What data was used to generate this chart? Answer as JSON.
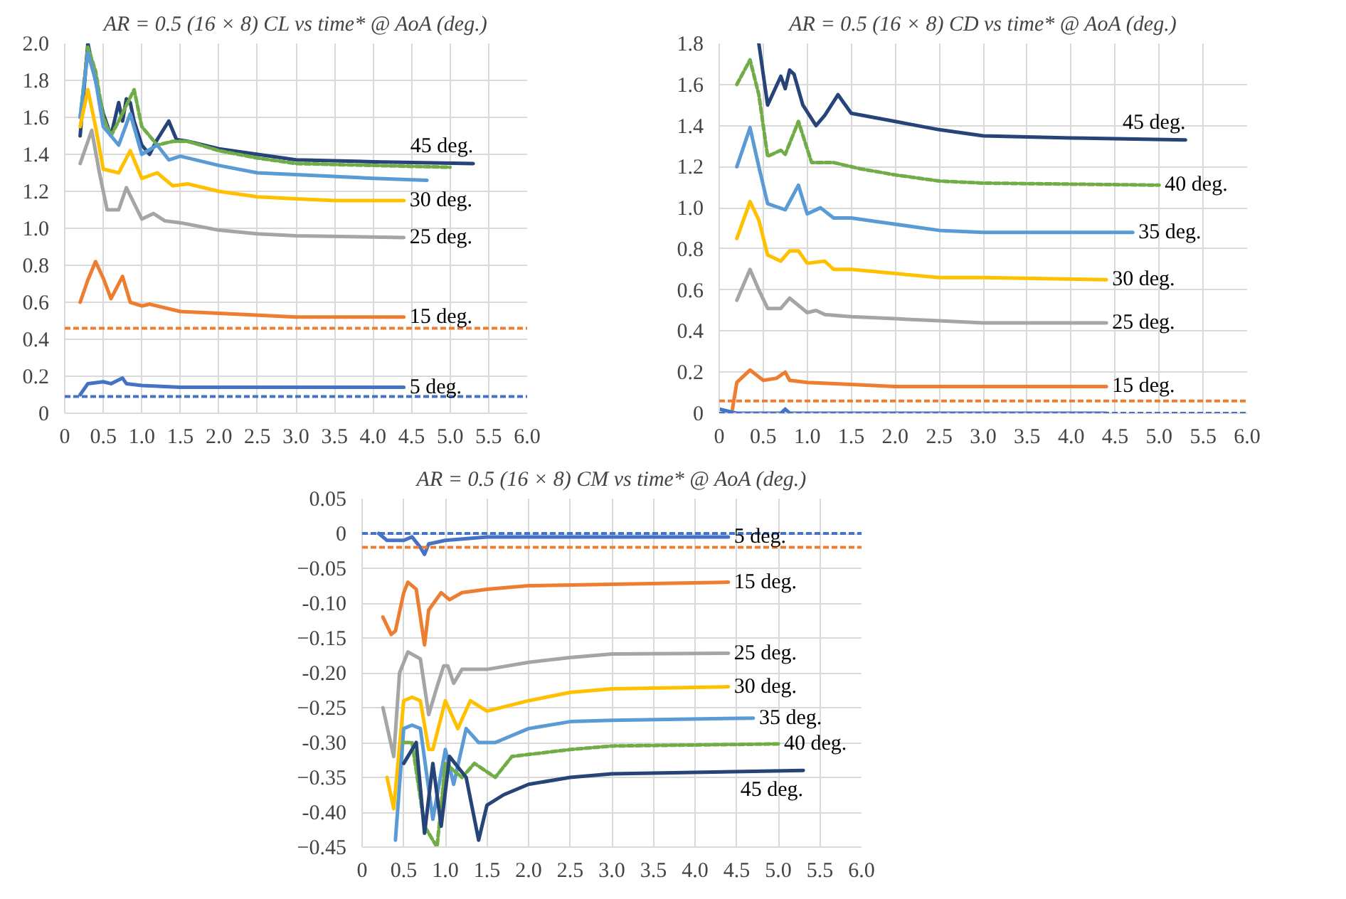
{
  "chart_data": [
    {
      "type": "line",
      "title": "AR = 0.5 (16 × 8) CL vs time* @ AoA (deg.)",
      "xlim": [
        0,
        6
      ],
      "ylim": [
        0,
        2
      ],
      "xticks": [
        0,
        0.5,
        {
          "value": 1,
          "label": "1.0"
        },
        1.5,
        {
          "value": 2,
          "label": "2.0"
        },
        2.5,
        {
          "value": 3,
          "label": "3.0"
        },
        3.5,
        {
          "value": 4,
          "label": "4.0"
        },
        4.5,
        {
          "value": 5,
          "label": "5.0"
        },
        5.5,
        {
          "value": 6,
          "label": "6.0"
        }
      ],
      "yticks": [
        0,
        0.2,
        0.4,
        0.6,
        0.8,
        {
          "value": 1,
          "label": "1.0"
        },
        1.2,
        1.4,
        1.6,
        1.8,
        {
          "value": 2,
          "label": "2.0"
        }
      ],
      "grid": true,
      "ref_lines": [
        {
          "axis": "y",
          "value": 0.46,
          "color": "#ed7d31",
          "line_style": "dashed"
        },
        {
          "axis": "y",
          "value": 0.09,
          "color": "#4472c4",
          "line_style": "dashed"
        }
      ],
      "series": [
        {
          "name": "45 deg.",
          "color": "#264478",
          "x": [
            0.2,
            0.3,
            0.4,
            0.5,
            0.6,
            0.7,
            0.75,
            0.8,
            0.85,
            0.9,
            1.0,
            1.1,
            1.2,
            1.35,
            1.45,
            1.6,
            2.0,
            2.5,
            3.0,
            4.0,
            5.3
          ],
          "values": [
            1.5,
            2.0,
            1.8,
            1.62,
            1.5,
            1.68,
            1.58,
            1.7,
            1.68,
            1.58,
            1.45,
            1.4,
            1.48,
            1.58,
            1.48,
            1.47,
            1.43,
            1.4,
            1.37,
            1.36,
            1.35
          ]
        },
        {
          "color": "#70ad47",
          "line_style": "dashed",
          "x": [
            0.2,
            0.3,
            0.4,
            0.5,
            0.6,
            0.7,
            0.9,
            1.0,
            1.2,
            1.4,
            1.6,
            2.0,
            2.5,
            3.0,
            4.0,
            5.0
          ],
          "values": [
            1.6,
            1.98,
            1.85,
            1.6,
            1.5,
            1.58,
            1.75,
            1.55,
            1.45,
            1.47,
            1.47,
            1.42,
            1.38,
            1.35,
            1.34,
            1.33
          ]
        },
        {
          "color": "#5b9bd5",
          "x": [
            0.2,
            0.3,
            0.4,
            0.5,
            0.7,
            0.85,
            1.0,
            1.2,
            1.35,
            1.5,
            2.0,
            2.5,
            3.0,
            4.0,
            4.7
          ],
          "values": [
            1.6,
            1.95,
            1.8,
            1.55,
            1.45,
            1.62,
            1.4,
            1.45,
            1.37,
            1.39,
            1.34,
            1.3,
            1.29,
            1.27,
            1.26
          ]
        },
        {
          "name": "30 deg.",
          "color": "#ffc000",
          "x": [
            0.2,
            0.3,
            0.4,
            0.5,
            0.7,
            0.85,
            1.0,
            1.2,
            1.4,
            1.6,
            2.0,
            2.5,
            3.0,
            3.5,
            4.4
          ],
          "values": [
            1.55,
            1.75,
            1.55,
            1.32,
            1.3,
            1.42,
            1.27,
            1.3,
            1.23,
            1.24,
            1.2,
            1.17,
            1.16,
            1.15,
            1.15
          ]
        },
        {
          "name": "25 deg.",
          "color": "#a5a5a5",
          "x": [
            0.2,
            0.35,
            0.45,
            0.55,
            0.7,
            0.8,
            1.0,
            1.15,
            1.3,
            1.5,
            2.0,
            2.5,
            3.0,
            4.4
          ],
          "values": [
            1.35,
            1.53,
            1.3,
            1.1,
            1.1,
            1.22,
            1.05,
            1.08,
            1.04,
            1.03,
            0.99,
            0.97,
            0.96,
            0.95
          ]
        },
        {
          "name": "15 deg.",
          "color": "#ed7d31",
          "x": [
            0.2,
            0.3,
            0.4,
            0.5,
            0.6,
            0.75,
            0.85,
            1.0,
            1.1,
            1.5,
            2.0,
            3.0,
            4.4
          ],
          "values": [
            0.6,
            0.72,
            0.82,
            0.73,
            0.62,
            0.74,
            0.6,
            0.58,
            0.59,
            0.55,
            0.54,
            0.52,
            0.52
          ]
        },
        {
          "name": "5 deg.",
          "color": "#4472c4",
          "x": [
            0.2,
            0.3,
            0.5,
            0.6,
            0.75,
            0.8,
            1.0,
            1.5,
            2.0,
            4.4
          ],
          "values": [
            0.1,
            0.16,
            0.17,
            0.16,
            0.19,
            0.16,
            0.15,
            0.14,
            0.14,
            0.14
          ]
        }
      ]
    },
    {
      "type": "line",
      "title": "AR = 0.5 (16 × 8) CD vs time* @ AoA (deg.)",
      "xlim": [
        0,
        6
      ],
      "ylim": [
        0,
        1.8
      ],
      "xticks": [
        0,
        0.5,
        {
          "value": 1,
          "label": "1.0"
        },
        1.5,
        {
          "value": 2,
          "label": "2.0"
        },
        2.5,
        {
          "value": 3,
          "label": "3.0"
        },
        3.5,
        {
          "value": 4,
          "label": "4.0"
        },
        4.5,
        {
          "value": 5,
          "label": "5.0"
        },
        5.5,
        {
          "value": 6,
          "label": "6.0"
        }
      ],
      "yticks": [
        0,
        0.2,
        0.4,
        0.6,
        0.8,
        {
          "value": 1,
          "label": "1.0"
        },
        1.2,
        1.4,
        1.6,
        1.8
      ],
      "grid": true,
      "ref_lines": [
        {
          "axis": "y",
          "value": 0.06,
          "color": "#ed7d31",
          "line_style": "dashed"
        },
        {
          "axis": "y",
          "value": 0,
          "color": "#4472c4",
          "line_style": "dashed"
        }
      ],
      "series": [
        {
          "name": "45 deg.",
          "color": "#264478",
          "x": [
            0.45,
            0.55,
            0.7,
            0.75,
            0.8,
            0.85,
            0.95,
            1.1,
            1.2,
            1.35,
            1.5,
            2.0,
            2.5,
            3.0,
            4.0,
            5.3
          ],
          "values": [
            1.8,
            1.5,
            1.64,
            1.58,
            1.67,
            1.65,
            1.5,
            1.4,
            1.45,
            1.55,
            1.46,
            1.42,
            1.38,
            1.35,
            1.34,
            1.33
          ]
        },
        {
          "name": "40 deg.",
          "color": "#70ad47",
          "line_style": "dashed",
          "x": [
            0.2,
            0.35,
            0.45,
            0.55,
            0.7,
            0.75,
            0.9,
            1.05,
            1.3,
            1.6,
            2.0,
            2.5,
            3.0,
            5.0
          ],
          "values": [
            1.6,
            1.72,
            1.55,
            1.25,
            1.28,
            1.26,
            1.42,
            1.22,
            1.22,
            1.19,
            1.16,
            1.13,
            1.12,
            1.11
          ]
        },
        {
          "name": "35 deg.",
          "color": "#5b9bd5",
          "x": [
            0.2,
            0.35,
            0.45,
            0.55,
            0.75,
            0.9,
            1.0,
            1.15,
            1.3,
            1.5,
            2.0,
            2.5,
            3.0,
            4.7
          ],
          "values": [
            1.2,
            1.39,
            1.2,
            1.02,
            0.99,
            1.11,
            0.97,
            1.0,
            0.95,
            0.95,
            0.92,
            0.89,
            0.88,
            0.88
          ]
        },
        {
          "name": "30 deg.",
          "color": "#ffc000",
          "x": [
            0.2,
            0.35,
            0.45,
            0.55,
            0.7,
            0.8,
            0.9,
            1.0,
            1.2,
            1.3,
            1.5,
            2.0,
            2.5,
            3.0,
            4.4
          ],
          "values": [
            0.85,
            1.03,
            0.94,
            0.77,
            0.74,
            0.79,
            0.79,
            0.73,
            0.74,
            0.7,
            0.7,
            0.68,
            0.66,
            0.66,
            0.65
          ]
        },
        {
          "name": "25 deg.",
          "color": "#a5a5a5",
          "x": [
            0.2,
            0.35,
            0.45,
            0.55,
            0.7,
            0.8,
            1.0,
            1.1,
            1.2,
            1.5,
            2.0,
            2.5,
            3.0,
            4.4
          ],
          "values": [
            0.55,
            0.7,
            0.6,
            0.51,
            0.51,
            0.56,
            0.49,
            0.5,
            0.48,
            0.47,
            0.46,
            0.45,
            0.44,
            0.44
          ]
        },
        {
          "name": "15 deg.",
          "color": "#ed7d31",
          "x": [
            0.15,
            0.2,
            0.35,
            0.5,
            0.65,
            0.75,
            0.8,
            1.0,
            1.5,
            2.0,
            4.4
          ],
          "values": [
            0.02,
            0.15,
            0.21,
            0.16,
            0.17,
            0.2,
            0.16,
            0.15,
            0.14,
            0.13,
            0.13
          ]
        },
        {
          "color": "#4472c4",
          "x": [
            0.0,
            0.1,
            0.2,
            0.7,
            0.75,
            0.8,
            4.4
          ],
          "values": [
            0.02,
            0.01,
            0.0,
            0.0,
            0.02,
            0.0,
            0.0
          ]
        }
      ]
    },
    {
      "type": "line",
      "title": "AR = 0.5 (16 × 8) CM vs time* @ AoA (deg.)",
      "xlim": [
        0,
        6
      ],
      "ylim": [
        -0.45,
        0.05
      ],
      "xticks": [
        0,
        0.5,
        {
          "value": 1,
          "label": "1.0"
        },
        1.5,
        {
          "value": 2,
          "label": "2.0"
        },
        2.5,
        {
          "value": 3,
          "label": "3.0"
        },
        3.5,
        {
          "value": 4,
          "label": "4.0"
        },
        4.5,
        {
          "value": 5,
          "label": "5.0"
        },
        5.5,
        {
          "value": 6,
          "label": "6.0"
        }
      ],
      "yticks": [
        0.05,
        0,
        -0.05,
        {
          "value": -0.1,
          "label": "-0.10"
        },
        -0.15,
        {
          "value": -0.2,
          "label": "-0.20"
        },
        -0.25,
        {
          "value": -0.3,
          "label": "-0.30"
        },
        -0.35,
        {
          "value": -0.4,
          "label": "-0.40"
        },
        -0.45
      ],
      "grid": true,
      "ref_lines": [
        {
          "axis": "y",
          "value": 0,
          "color": "#4472c4",
          "line_style": "dashed"
        },
        {
          "axis": "y",
          "value": -0.02,
          "color": "#ed7d31",
          "line_style": "dashed"
        }
      ],
      "series": [
        {
          "name": "5 deg.",
          "color": "#4472c4",
          "x": [
            0.2,
            0.3,
            0.5,
            0.6,
            0.7,
            0.75,
            0.8,
            1.0,
            1.5,
            2.5,
            4.4
          ],
          "values": [
            0.0,
            -0.01,
            -0.01,
            -0.005,
            -0.02,
            -0.03,
            -0.015,
            -0.01,
            -0.005,
            -0.005,
            -0.005
          ]
        },
        {
          "name": "15 deg.",
          "color": "#ed7d31",
          "x": [
            0.25,
            0.35,
            0.4,
            0.5,
            0.55,
            0.65,
            0.75,
            0.8,
            0.95,
            1.05,
            1.2,
            1.5,
            2.0,
            3.0,
            4.4
          ],
          "values": [
            -0.12,
            -0.145,
            -0.14,
            -0.085,
            -0.07,
            -0.08,
            -0.16,
            -0.11,
            -0.085,
            -0.095,
            -0.085,
            -0.08,
            -0.075,
            -0.073,
            -0.07
          ]
        },
        {
          "name": "25 deg.",
          "color": "#a5a5a5",
          "x": [
            0.25,
            0.38,
            0.45,
            0.55,
            0.7,
            0.8,
            0.9,
            0.98,
            1.03,
            1.1,
            1.2,
            1.5,
            2.0,
            2.5,
            3.0,
            4.4
          ],
          "values": [
            -0.25,
            -0.32,
            -0.2,
            -0.17,
            -0.18,
            -0.26,
            -0.22,
            -0.19,
            -0.19,
            -0.215,
            -0.195,
            -0.195,
            -0.185,
            -0.178,
            -0.173,
            -0.172
          ]
        },
        {
          "name": "30 deg.",
          "color": "#ffc000",
          "x": [
            0.3,
            0.38,
            0.5,
            0.6,
            0.7,
            0.8,
            0.85,
            1.0,
            1.15,
            1.3,
            1.5,
            2.0,
            2.5,
            3.0,
            4.4
          ],
          "values": [
            -0.35,
            -0.395,
            -0.24,
            -0.235,
            -0.24,
            -0.31,
            -0.31,
            -0.24,
            -0.28,
            -0.24,
            -0.255,
            -0.24,
            -0.228,
            -0.223,
            -0.22
          ]
        },
        {
          "name": "35 deg.",
          "color": "#5b9bd5",
          "x": [
            0.4,
            0.5,
            0.6,
            0.7,
            0.85,
            1.0,
            1.1,
            1.25,
            1.4,
            1.6,
            2.0,
            2.5,
            3.0,
            4.7
          ],
          "values": [
            -0.44,
            -0.28,
            -0.275,
            -0.28,
            -0.41,
            -0.31,
            -0.36,
            -0.28,
            -0.3,
            -0.3,
            -0.28,
            -0.27,
            -0.268,
            -0.265
          ]
        },
        {
          "name": "40 deg.",
          "color": "#70ad47",
          "line_style": "dashed",
          "x": [
            0.5,
            0.6,
            0.75,
            0.9,
            1.0,
            1.2,
            1.35,
            1.6,
            1.8,
            2.5,
            3.0,
            5.0
          ],
          "values": [
            -0.3,
            -0.3,
            -0.42,
            -0.45,
            -0.33,
            -0.35,
            -0.33,
            -0.35,
            -0.32,
            -0.31,
            -0.305,
            -0.302
          ]
        },
        {
          "name": "45 deg.",
          "color": "#264478",
          "x": [
            0.5,
            0.65,
            0.75,
            0.85,
            0.95,
            1.05,
            1.25,
            1.4,
            1.5,
            1.7,
            2.0,
            2.5,
            3.0,
            5.3
          ],
          "values": [
            -0.33,
            -0.3,
            -0.43,
            -0.33,
            -0.42,
            -0.32,
            -0.35,
            -0.44,
            -0.39,
            -0.375,
            -0.36,
            -0.35,
            -0.345,
            -0.34
          ]
        }
      ]
    }
  ]
}
